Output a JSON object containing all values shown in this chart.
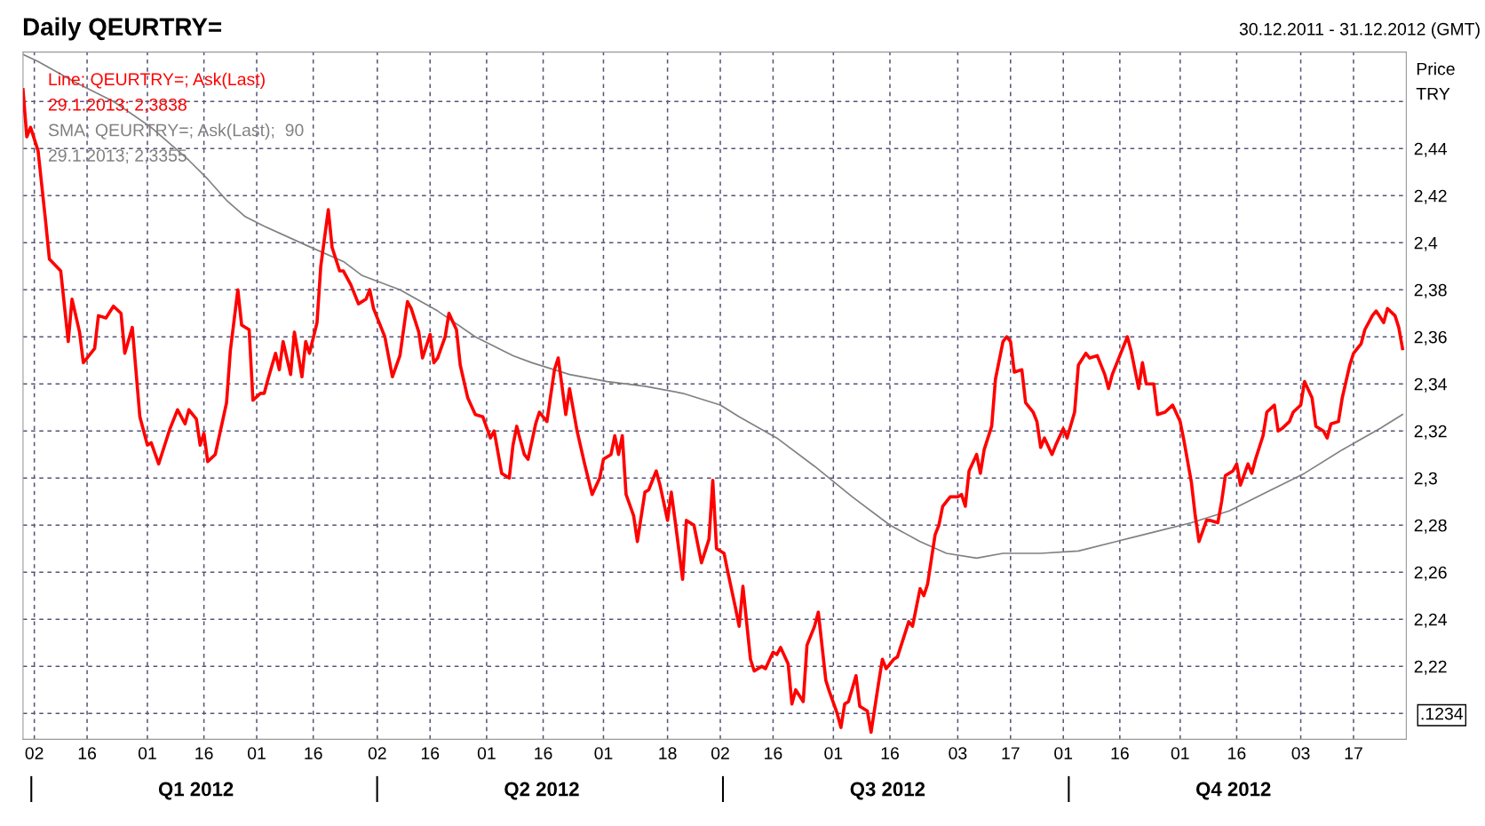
{
  "chart_data": {
    "type": "line",
    "title": "Daily QEURTRY=",
    "subtitle": "30.12.2011 - 31.12.2012 (GMT)",
    "ylabel": "Price\nTRY",
    "legend": "top left",
    "grid": true,
    "line_style": "solid",
    "xlim": [
      "2011-12-30",
      "2012-12-31"
    ],
    "xticks": [
      {
        "value": "2012-01-02",
        "label": "02"
      },
      {
        "value": "2012-01-16",
        "label": "16"
      },
      {
        "value": "2012-02-01",
        "label": "01"
      },
      {
        "value": "2012-02-16",
        "label": "16"
      },
      {
        "value": "2012-03-01",
        "label": "01"
      },
      {
        "value": "2012-03-16",
        "label": "16"
      },
      {
        "value": "2012-04-02",
        "label": "02"
      },
      {
        "value": "2012-04-16",
        "label": "16"
      },
      {
        "value": "2012-05-01",
        "label": "01"
      },
      {
        "value": "2012-05-16",
        "label": "16"
      },
      {
        "value": "2012-06-01",
        "label": "01"
      },
      {
        "value": "2012-06-18",
        "label": "18"
      },
      {
        "value": "2012-07-02",
        "label": "02"
      },
      {
        "value": "2012-07-16",
        "label": "16"
      },
      {
        "value": "2012-08-01",
        "label": "01"
      },
      {
        "value": "2012-08-16",
        "label": "16"
      },
      {
        "value": "2012-09-03",
        "label": "03"
      },
      {
        "value": "2012-09-17",
        "label": "17"
      },
      {
        "value": "2012-10-01",
        "label": "01"
      },
      {
        "value": "2012-10-16",
        "label": "16"
      },
      {
        "value": "2012-11-01",
        "label": "01"
      },
      {
        "value": "2012-11-16",
        "label": "16"
      },
      {
        "value": "2012-12-03",
        "label": "03"
      },
      {
        "value": "2012-12-17",
        "label": "17"
      }
    ],
    "ylim": [
      2.189,
      2.481
    ],
    "yticks": [
      {
        "value": 2.2,
        "label": null
      },
      {
        "value": 2.22,
        "label": "2,22"
      },
      {
        "value": 2.24,
        "label": "2,24"
      },
      {
        "value": 2.26,
        "label": "2,26"
      },
      {
        "value": 2.28,
        "label": "2,28"
      },
      {
        "value": 2.3,
        "label": "2,3"
      },
      {
        "value": 2.32,
        "label": "2,32"
      },
      {
        "value": 2.34,
        "label": "2,34"
      },
      {
        "value": 2.36,
        "label": "2,36"
      },
      {
        "value": 2.38,
        "label": "2,38"
      },
      {
        "value": 2.4,
        "label": "2,4"
      },
      {
        "value": 2.42,
        "label": "2,42"
      },
      {
        "value": 2.44,
        "label": "2,44"
      },
      {
        "value": 2.46,
        "label": null
      }
    ],
    "annotations": [
      "29.1.2013; 2,3838",
      "29.1.2013; 2,3355",
      ".1234",
      "Q1 2012",
      "Q2 2012",
      "Q3 2012",
      "Q4 2012"
    ],
    "series": [
      {
        "name": "Line; QEURTRY=; Ask(Last)",
        "color": "#ff0000",
        "x": [
          "2011-12-30",
          "2011-12-31",
          "2012-01-01",
          "2012-01-03",
          "2012-01-05",
          "2012-01-06",
          "2012-01-09",
          "2012-01-11",
          "2012-01-12",
          "2012-01-14",
          "2012-01-15",
          "2012-01-18",
          "2012-01-19",
          "2012-01-21",
          "2012-01-23",
          "2012-01-25",
          "2012-01-26",
          "2012-01-28",
          "2012-01-30",
          "2012-02-01",
          "2012-02-02",
          "2012-02-04",
          "2012-02-05",
          "2012-02-07",
          "2012-02-09",
          "2012-02-11",
          "2012-02-12",
          "2012-02-14",
          "2012-02-15",
          "2012-02-16",
          "2012-02-17",
          "2012-02-19",
          "2012-02-22",
          "2012-02-23",
          "2012-02-25",
          "2012-02-26",
          "2012-02-28",
          "2012-02-29",
          "2012-03-02",
          "2012-03-03",
          "2012-03-04",
          "2012-03-06",
          "2012-03-07",
          "2012-03-08",
          "2012-03-10",
          "2012-03-11",
          "2012-03-13",
          "2012-03-14",
          "2012-03-15",
          "2012-03-17",
          "2012-03-18",
          "2012-03-20",
          "2012-03-21",
          "2012-03-23",
          "2012-03-24",
          "2012-03-26",
          "2012-03-28",
          "2012-03-30",
          "2012-03-31",
          "2012-04-01",
          "2012-04-03",
          "2012-04-04",
          "2012-04-06",
          "2012-04-08",
          "2012-04-10",
          "2012-04-11",
          "2012-04-13",
          "2012-04-14",
          "2012-04-16",
          "2012-04-17",
          "2012-04-18",
          "2012-04-20",
          "2012-04-21",
          "2012-04-23",
          "2012-04-24",
          "2012-04-26",
          "2012-04-28",
          "2012-04-30",
          "2012-05-02",
          "2012-05-03",
          "2012-05-05",
          "2012-05-07",
          "2012-05-08",
          "2012-05-09",
          "2012-05-11",
          "2012-05-12",
          "2012-05-14",
          "2012-05-15",
          "2012-05-17",
          "2012-05-19",
          "2012-05-20",
          "2012-05-22",
          "2012-05-23",
          "2012-05-25",
          "2012-05-27",
          "2012-05-29",
          "2012-05-31",
          "2012-06-01",
          "2012-06-03",
          "2012-06-04",
          "2012-06-05",
          "2012-06-06",
          "2012-06-07",
          "2012-06-09",
          "2012-06-10",
          "2012-06-12",
          "2012-06-13",
          "2012-06-15",
          "2012-06-16",
          "2012-06-18",
          "2012-06-19",
          "2012-06-20",
          "2012-06-22",
          "2012-06-23",
          "2012-06-25",
          "2012-06-26",
          "2012-06-27",
          "2012-06-29",
          "2012-06-30",
          "2012-07-01",
          "2012-07-03",
          "2012-07-04",
          "2012-07-06",
          "2012-07-07",
          "2012-07-08",
          "2012-07-10",
          "2012-07-11",
          "2012-07-13",
          "2012-07-14",
          "2012-07-16",
          "2012-07-17",
          "2012-07-18",
          "2012-07-20",
          "2012-07-21",
          "2012-07-22",
          "2012-07-24",
          "2012-07-25",
          "2012-07-27",
          "2012-07-28",
          "2012-07-30",
          "2012-07-31",
          "2012-08-02",
          "2012-08-03",
          "2012-08-04",
          "2012-08-05",
          "2012-08-07",
          "2012-08-08",
          "2012-08-10",
          "2012-08-11",
          "2012-08-13",
          "2012-08-14",
          "2012-08-15",
          "2012-08-17",
          "2012-08-18",
          "2012-08-19",
          "2012-08-21",
          "2012-08-22",
          "2012-08-24",
          "2012-08-25",
          "2012-08-26",
          "2012-08-28",
          "2012-08-29",
          "2012-08-30",
          "2012-09-01",
          "2012-09-03",
          "2012-09-04",
          "2012-09-05",
          "2012-09-06",
          "2012-09-08",
          "2012-09-09",
          "2012-09-10",
          "2012-09-12",
          "2012-09-13",
          "2012-09-15",
          "2012-09-16",
          "2012-09-17",
          "2012-09-18",
          "2012-09-20",
          "2012-09-21",
          "2012-09-23",
          "2012-09-24",
          "2012-09-25",
          "2012-09-26",
          "2012-09-28",
          "2012-09-29",
          "2012-10-01",
          "2012-10-02",
          "2012-10-04",
          "2012-10-05",
          "2012-10-07",
          "2012-10-08",
          "2012-10-10",
          "2012-10-12",
          "2012-10-13",
          "2012-10-14",
          "2012-10-16",
          "2012-10-18",
          "2012-10-19",
          "2012-10-21",
          "2012-10-22",
          "2012-10-23",
          "2012-10-25",
          "2012-10-26",
          "2012-10-28",
          "2012-10-30",
          "2012-11-01",
          "2012-11-02",
          "2012-11-04",
          "2012-11-05",
          "2012-11-06",
          "2012-11-08",
          "2012-11-09",
          "2012-11-11",
          "2012-11-12",
          "2012-11-13",
          "2012-11-15",
          "2012-11-16",
          "2012-11-17",
          "2012-11-19",
          "2012-11-20",
          "2012-11-21",
          "2012-11-23",
          "2012-11-24",
          "2012-11-26",
          "2012-11-27",
          "2012-11-28",
          "2012-11-30",
          "2012-12-01",
          "2012-12-03",
          "2012-12-04",
          "2012-12-06",
          "2012-12-07",
          "2012-12-09",
          "2012-12-10",
          "2012-12-11",
          "2012-12-13",
          "2012-12-14",
          "2012-12-16",
          "2012-12-17",
          "2012-12-19",
          "2012-12-20",
          "2012-12-22",
          "2012-12-23",
          "2012-12-25",
          "2012-12-26",
          "2012-12-28",
          "2012-12-29",
          "2012-12-30"
        ],
        "values": [
          2.465,
          2.445,
          2.449,
          2.439,
          2.409,
          2.393,
          2.388,
          2.358,
          2.376,
          2.362,
          2.349,
          2.355,
          2.369,
          2.368,
          2.373,
          2.37,
          2.353,
          2.364,
          2.326,
          2.314,
          2.315,
          2.306,
          2.311,
          2.321,
          2.329,
          2.323,
          2.329,
          2.325,
          2.314,
          2.319,
          2.307,
          2.31,
          2.332,
          2.354,
          2.38,
          2.365,
          2.363,
          2.333,
          2.336,
          2.336,
          2.342,
          2.353,
          2.346,
          2.358,
          2.344,
          2.362,
          2.343,
          2.358,
          2.353,
          2.366,
          2.39,
          2.414,
          2.398,
          2.388,
          2.388,
          2.382,
          2.374,
          2.376,
          2.38,
          2.372,
          2.364,
          2.36,
          2.343,
          2.352,
          2.375,
          2.372,
          2.362,
          2.351,
          2.361,
          2.349,
          2.351,
          2.36,
          2.37,
          2.363,
          2.348,
          2.334,
          2.327,
          2.326,
          2.317,
          2.32,
          2.302,
          2.3,
          2.314,
          2.322,
          2.31,
          2.308,
          2.323,
          2.328,
          2.324,
          2.346,
          2.351,
          2.327,
          2.338,
          2.32,
          2.306,
          2.293,
          2.3,
          2.308,
          2.31,
          2.318,
          2.31,
          2.318,
          2.293,
          2.284,
          2.273,
          2.294,
          2.295,
          2.303,
          2.297,
          2.282,
          2.294,
          2.282,
          2.257,
          2.282,
          2.28,
          2.272,
          2.264,
          2.274,
          2.299,
          2.27,
          2.268,
          2.26,
          2.245,
          2.237,
          2.254,
          2.223,
          2.218,
          2.22,
          2.219,
          2.226,
          2.225,
          2.228,
          2.221,
          2.204,
          2.21,
          2.205,
          2.229,
          2.237,
          2.243,
          2.214,
          2.209,
          2.2,
          2.194,
          2.204,
          2.205,
          2.216,
          2.203,
          2.201,
          2.192,
          2.213,
          2.223,
          2.219,
          2.223,
          2.224,
          2.229,
          2.239,
          2.237,
          2.253,
          2.25,
          2.255,
          2.276,
          2.28,
          2.288,
          2.292,
          2.292,
          2.293,
          2.288,
          2.303,
          2.31,
          2.302,
          2.312,
          2.322,
          2.342,
          2.358,
          2.36,
          2.358,
          2.345,
          2.346,
          2.332,
          2.328,
          2.324,
          2.313,
          2.317,
          2.31,
          2.314,
          2.321,
          2.317,
          2.328,
          2.348,
          2.353,
          2.351,
          2.352,
          2.344,
          2.338,
          2.344,
          2.352,
          2.36,
          2.354,
          2.338,
          2.349,
          2.34,
          2.34,
          2.327,
          2.328,
          2.331,
          2.324,
          2.316,
          2.298,
          2.284,
          2.273,
          2.282,
          2.282,
          2.281,
          2.29,
          2.301,
          2.303,
          2.306,
          2.297,
          2.306,
          2.302,
          2.308,
          2.318,
          2.328,
          2.331,
          2.32,
          2.321,
          2.324,
          2.328,
          2.331,
          2.341,
          2.334,
          2.322,
          2.32,
          2.317,
          2.323,
          2.324,
          2.334,
          2.348,
          2.353,
          2.357,
          2.363,
          2.369,
          2.371,
          2.366,
          2.372,
          2.369,
          2.364,
          2.355
        ]
      },
      {
        "name": "SMA; QEURTRY=; Ask(Last);  90",
        "color": "#808080",
        "x": [
          "2011-12-30",
          "2012-01-03",
          "2012-01-13",
          "2012-01-23",
          "2012-02-02",
          "2012-02-12",
          "2012-02-17",
          "2012-02-22",
          "2012-02-27",
          "2012-03-03",
          "2012-03-14",
          "2012-03-24",
          "2012-03-29",
          "2012-04-08",
          "2012-04-18",
          "2012-04-28",
          "2012-05-08",
          "2012-05-13",
          "2012-05-23",
          "2012-06-02",
          "2012-06-12",
          "2012-06-22",
          "2012-07-02",
          "2012-07-07",
          "2012-07-17",
          "2012-07-27",
          "2012-08-06",
          "2012-08-16",
          "2012-08-24",
          "2012-08-31",
          "2012-09-08",
          "2012-09-15",
          "2012-09-25",
          "2012-10-05",
          "2012-10-15",
          "2012-10-25",
          "2012-11-04",
          "2012-11-14",
          "2012-11-24",
          "2012-12-04",
          "2012-12-14",
          "2012-12-24",
          "2012-12-30"
        ],
        "values": [
          2.48,
          2.477,
          2.468,
          2.46,
          2.449,
          2.435,
          2.427,
          2.418,
          2.411,
          2.407,
          2.399,
          2.392,
          2.386,
          2.38,
          2.371,
          2.36,
          2.352,
          2.349,
          2.344,
          2.341,
          2.339,
          2.336,
          2.331,
          2.326,
          2.317,
          2.305,
          2.292,
          2.28,
          2.273,
          2.268,
          2.266,
          2.268,
          2.268,
          2.269,
          2.273,
          2.277,
          2.281,
          2.286,
          2.294,
          2.302,
          2.312,
          2.321,
          2.327
        ]
      }
    ]
  }
}
